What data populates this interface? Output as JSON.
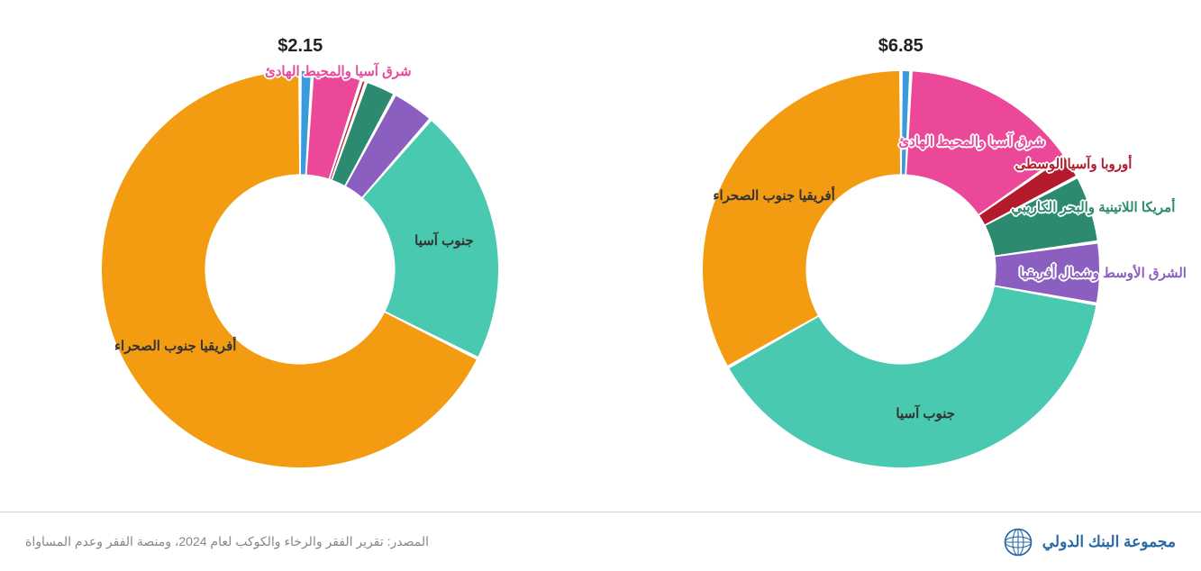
{
  "background_color": "#ffffff",
  "footer_border_color": "#d0d0d0",
  "source_text": "المصدر: تقرير الفقر والرخاء والكوكب لعام 2024، ومنصة الفقر وعدم المساواة",
  "source_color": "#888888",
  "brand_text": "مجموعة البنك الدولي",
  "brand_color": "#2a6aa8",
  "charts": [
    {
      "id": "chart_685",
      "title": "$6.85",
      "title_fontsize": 20,
      "inner_radius_ratio": 0.48,
      "outer_radius": 220,
      "label_fontsize": 15,
      "gap_deg": 1,
      "slices": [
        {
          "name": "rest_of_world",
          "label": "",
          "value": 0.8,
          "color": "#3a9bdc"
        },
        {
          "name": "east_asia_pacific",
          "label": "شرق آسيا والمحيط الهادئ",
          "value": 14.5,
          "color": "#ec4899",
          "label_pos": "mid",
          "label_stroked": true,
          "label_color": "#ec4899"
        },
        {
          "name": "europe_central_asia",
          "label": "أوروبا وآسيا الوسطى",
          "value": 2.0,
          "color": "#b31b2c",
          "label_pos": "outer",
          "label_stroked": true,
          "label_color": "#b31b2c"
        },
        {
          "name": "latin_america_caribbean",
          "label": "أمريكا اللاتينية والبحر الكاريبي",
          "value": 5.5,
          "color": "#2b8a6f",
          "label_pos": "outer",
          "label_stroked": true,
          "label_color": "#2b8a6f"
        },
        {
          "name": "middle_east_north_africa",
          "label": "الشرق الأوسط وشمال أفريقيا",
          "value": 5.0,
          "color": "#8b5fbf",
          "label_pos": "outer",
          "label_stroked": true,
          "label_color": "#8b5fbf"
        },
        {
          "name": "south_asia",
          "label": "جنوب آسيا",
          "value": 39.0,
          "color": "#48c9b0",
          "label_pos": "mid",
          "label_color": "#333333"
        },
        {
          "name": "sub_saharan_africa",
          "label": "أفريقيا جنوب الصحراء",
          "value": 33.2,
          "color": "#f39c12",
          "label_pos": "mid",
          "label_color": "#333333"
        }
      ]
    },
    {
      "id": "chart_215",
      "title": "$2.15",
      "title_fontsize": 20,
      "inner_radius_ratio": 0.48,
      "outer_radius": 220,
      "label_fontsize": 15,
      "gap_deg": 1,
      "slices": [
        {
          "name": "rest_of_world",
          "label": "",
          "value": 1.0,
          "color": "#3a9bdc"
        },
        {
          "name": "east_asia_pacific",
          "label": "شرق آسيا والمحيط الهادئ",
          "value": 4.0,
          "color": "#ec4899",
          "label_pos": "outer",
          "label_stroked": true,
          "label_color": "#ec4899"
        },
        {
          "name": "europe_central_asia",
          "label": "",
          "value": 0.4,
          "color": "#b31b2c"
        },
        {
          "name": "latin_america_caribbean",
          "label": "",
          "value": 2.5,
          "color": "#2b8a6f"
        },
        {
          "name": "middle_east_north_africa",
          "label": "",
          "value": 3.5,
          "color": "#8b5fbf"
        },
        {
          "name": "south_asia",
          "label": "جنوب آسيا",
          "value": 21.0,
          "color": "#48c9b0",
          "label_pos": "mid",
          "label_color": "#333333"
        },
        {
          "name": "sub_saharan_africa",
          "label": "أفريقيا جنوب الصحراء",
          "value": 67.6,
          "color": "#f39c12",
          "label_pos": "mid",
          "label_color": "#333333"
        }
      ]
    }
  ]
}
